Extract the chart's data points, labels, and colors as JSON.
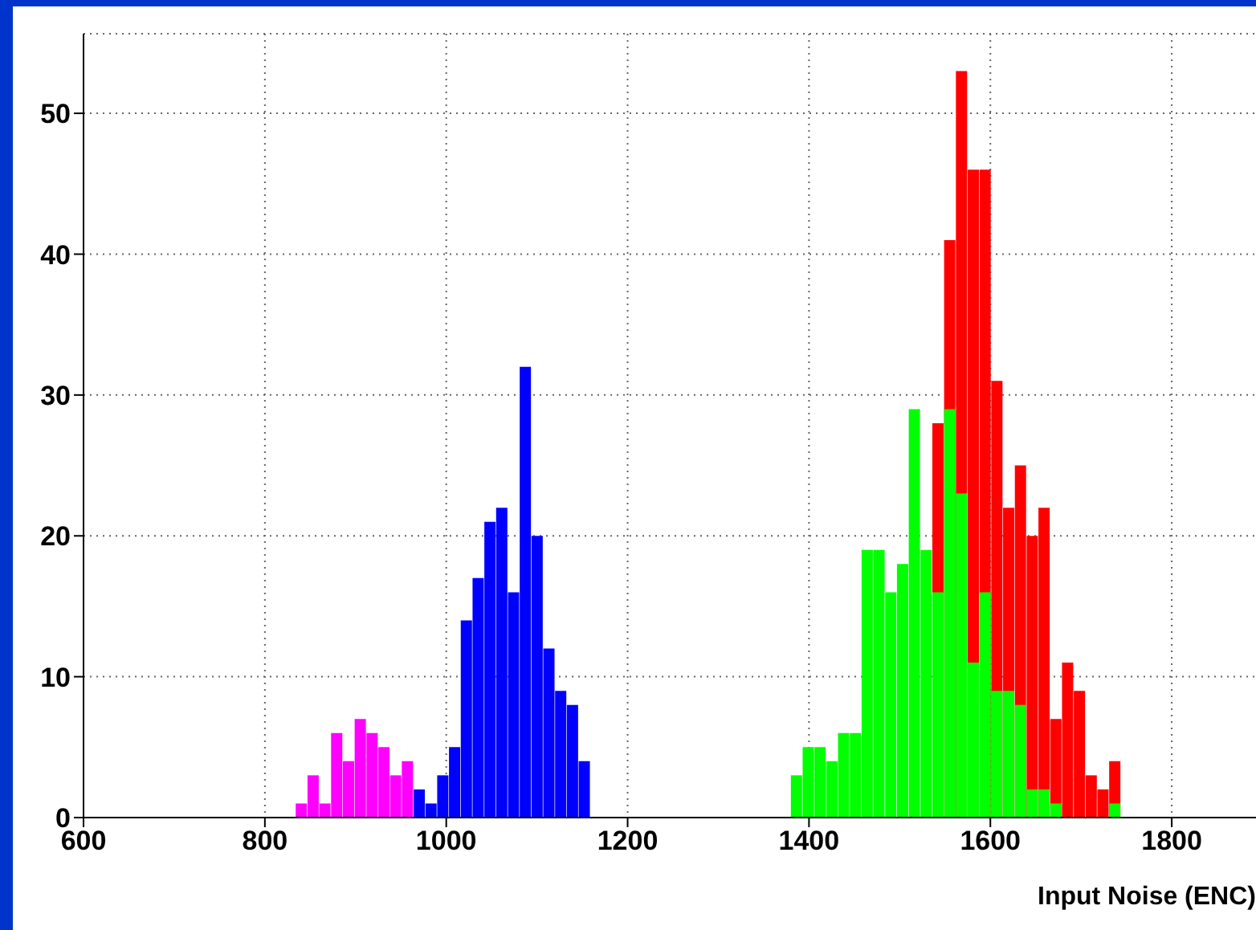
{
  "chart_data": {
    "type": "histogram",
    "xlabel": "Input Noise (ENC)",
    "xlim": [
      600,
      1900
    ],
    "xticks": [
      600,
      800,
      1000,
      1200,
      1400,
      1600,
      1800
    ],
    "ylim": [
      0,
      55.65
    ],
    "yticks": [
      0,
      10,
      20,
      30,
      40,
      50
    ],
    "grid": true,
    "bins": [
      834,
      847,
      860,
      873,
      886,
      899,
      912,
      925,
      938,
      951,
      964,
      977,
      990,
      1003,
      1016,
      1029,
      1042,
      1055,
      1068,
      1081,
      1094,
      1107,
      1120,
      1133,
      1146,
      1159,
      1172,
      1185,
      1198,
      1211,
      1224,
      1237,
      1250,
      1263,
      1276,
      1289,
      1302,
      1315,
      1328,
      1341,
      1354,
      1367,
      1380,
      1393,
      1406,
      1419,
      1432,
      1445,
      1458,
      1471,
      1484,
      1497,
      1510,
      1523,
      1536,
      1549,
      1562,
      1575,
      1588,
      1601,
      1614,
      1627,
      1640,
      1653,
      1666,
      1679,
      1692,
      1705,
      1718,
      1731,
      1744
    ],
    "series": [
      {
        "color": "#ff00ff",
        "values": [
          1,
          3,
          1,
          6,
          4,
          7,
          6,
          5,
          3,
          4,
          null,
          null,
          null,
          null,
          null,
          null,
          null,
          null,
          null,
          null,
          null,
          null,
          null,
          null,
          null,
          null,
          null,
          null,
          null,
          null,
          null,
          null,
          null,
          null,
          null,
          null,
          null,
          null,
          null,
          null,
          null,
          null,
          null,
          null,
          null,
          null,
          null,
          null,
          null,
          null,
          null,
          null,
          null,
          null,
          null,
          null,
          null,
          null,
          null,
          null,
          null,
          null,
          null,
          null,
          null,
          null,
          null,
          null,
          null,
          null
        ]
      },
      {
        "color": "#0000ff",
        "values": [
          null,
          null,
          null,
          null,
          null,
          null,
          null,
          null,
          null,
          null,
          2,
          1,
          3,
          5,
          14,
          17,
          21,
          22,
          16,
          32,
          20,
          12,
          9,
          8,
          4,
          null,
          null,
          null,
          null,
          null,
          null,
          null,
          null,
          null,
          null,
          null,
          null,
          null,
          null,
          null,
          null,
          null,
          null,
          null,
          null,
          null,
          null,
          null,
          null,
          null,
          null,
          null,
          null,
          null,
          null,
          null,
          null,
          null,
          null,
          null,
          null,
          null,
          null,
          null,
          null,
          null,
          null,
          null,
          null,
          null
        ]
      },
      {
        "color": "#ff0000",
        "values": [
          null,
          null,
          null,
          null,
          null,
          null,
          null,
          null,
          null,
          null,
          null,
          null,
          null,
          null,
          null,
          null,
          null,
          null,
          null,
          null,
          null,
          null,
          null,
          null,
          null,
          null,
          null,
          null,
          null,
          null,
          null,
          null,
          null,
          null,
          null,
          null,
          null,
          null,
          null,
          null,
          null,
          null,
          null,
          null,
          null,
          null,
          null,
          null,
          null,
          null,
          null,
          null,
          null,
          null,
          28,
          41,
          53,
          46,
          46,
          31,
          22,
          25,
          20,
          22,
          7,
          11,
          9,
          3,
          2,
          4
        ]
      },
      {
        "color": "#00ff00",
        "values": [
          null,
          null,
          null,
          null,
          null,
          null,
          null,
          null,
          null,
          null,
          null,
          null,
          null,
          null,
          null,
          null,
          null,
          null,
          null,
          null,
          null,
          null,
          null,
          null,
          null,
          null,
          null,
          null,
          null,
          null,
          null,
          null,
          null,
          null,
          null,
          null,
          null,
          null,
          null,
          null,
          null,
          null,
          3,
          5,
          5,
          4,
          6,
          6,
          19,
          19,
          16,
          18,
          29,
          19,
          16,
          29,
          23,
          11,
          16,
          9,
          9,
          8,
          2,
          2,
          1,
          0,
          0,
          0,
          0,
          1
        ]
      }
    ]
  }
}
